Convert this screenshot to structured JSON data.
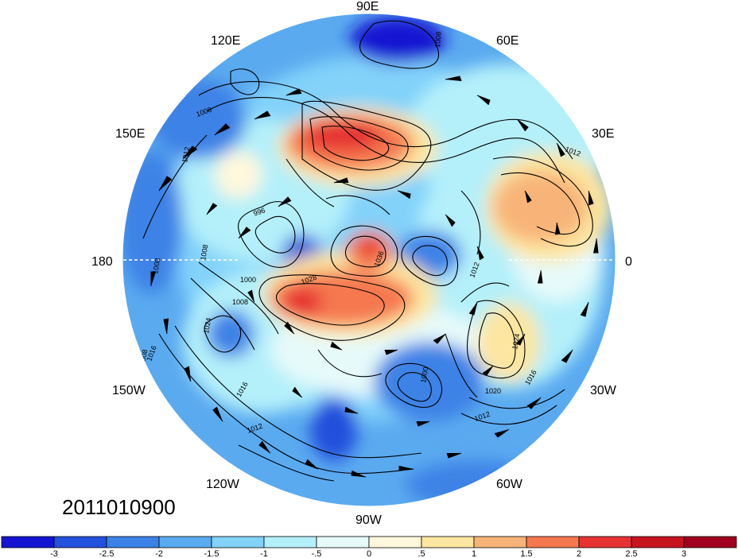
{
  "date_label": "2011010900",
  "longitude_labels": [
    {
      "id": "lon-90e",
      "text": "90E"
    },
    {
      "id": "lon-60e",
      "text": "60E"
    },
    {
      "id": "lon-30e",
      "text": "30E"
    },
    {
      "id": "lon-0",
      "text": "0"
    },
    {
      "id": "lon-30w",
      "text": "30W"
    },
    {
      "id": "lon-60w",
      "text": "60W"
    },
    {
      "id": "lon-90w",
      "text": "90W"
    },
    {
      "id": "lon-120w",
      "text": "120W"
    },
    {
      "id": "lon-150w",
      "text": "150W"
    },
    {
      "id": "lon-180",
      "text": "180"
    },
    {
      "id": "lon-150e",
      "text": "150E"
    },
    {
      "id": "lon-120e",
      "text": "120E"
    }
  ],
  "contour_labels": [
    "1008",
    "1016",
    "1008",
    "1012",
    "996",
    "1008",
    "1000",
    "1008",
    "1024",
    "1028",
    "1036",
    "1012",
    "1008",
    "1012",
    "1024",
    "1020",
    "1016",
    "1012",
    "1000",
    "1016",
    "1012",
    "1008"
  ],
  "colorbar": {
    "colors": [
      "#1414d2",
      "#2350dc",
      "#3c82e6",
      "#5aaaf0",
      "#82d2fa",
      "#b4f0fa",
      "#e6fafa",
      "#fff8dc",
      "#fde6a0",
      "#f8b478",
      "#f57850",
      "#e63232",
      "#c8141e",
      "#a0001e"
    ],
    "labels": [
      "-3",
      "-2.5",
      "-2",
      "-1.5",
      "-1",
      "-.5",
      "0",
      ".5",
      "1",
      "1.5",
      "2",
      "2.5",
      "3"
    ]
  }
}
